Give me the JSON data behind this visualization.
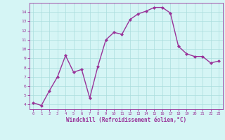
{
  "x": [
    0,
    1,
    2,
    3,
    4,
    5,
    6,
    7,
    8,
    9,
    10,
    11,
    12,
    13,
    14,
    15,
    16,
    17,
    18,
    19,
    20,
    21,
    22,
    23
  ],
  "y": [
    4.2,
    3.9,
    5.5,
    7.0,
    9.3,
    7.5,
    7.8,
    4.7,
    8.1,
    11.0,
    11.8,
    11.6,
    13.2,
    13.8,
    14.1,
    14.5,
    14.5,
    13.9,
    10.3,
    9.5,
    9.2,
    9.2,
    8.5,
    8.7
  ],
  "line_color": "#993399",
  "marker": "D",
  "marker_size": 2.0,
  "line_width": 1.0,
  "bg_color": "#d5f5f5",
  "grid_color": "#aadddd",
  "xlabel": "Windchill (Refroidissement éolien,°C)",
  "xlabel_color": "#993399",
  "tick_color": "#993399",
  "ylim": [
    3.5,
    15.0
  ],
  "xlim": [
    -0.5,
    23.5
  ],
  "yticks": [
    4,
    5,
    6,
    7,
    8,
    9,
    10,
    11,
    12,
    13,
    14
  ],
  "xticks": [
    0,
    1,
    2,
    3,
    4,
    5,
    6,
    7,
    8,
    9,
    10,
    11,
    12,
    13,
    14,
    15,
    16,
    17,
    18,
    19,
    20,
    21,
    22,
    23
  ]
}
